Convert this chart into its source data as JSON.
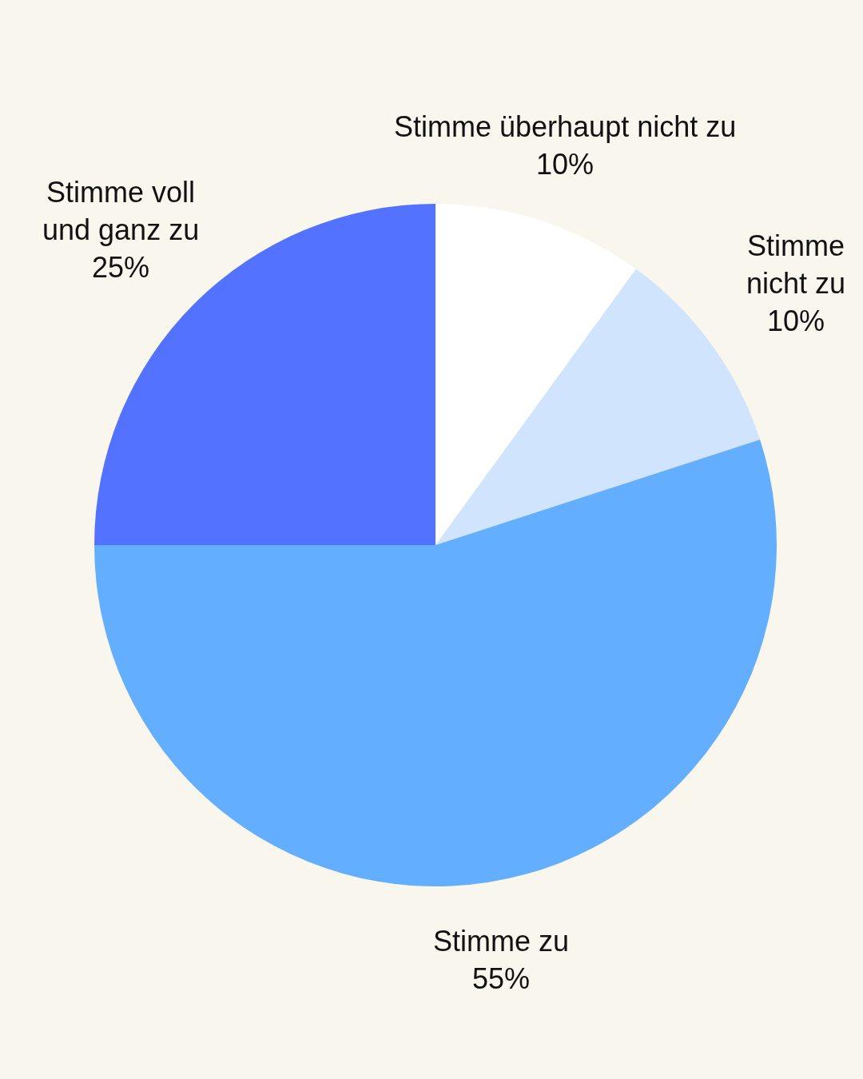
{
  "chart_data": {
    "type": "pie",
    "categories": [
      "Stimme überhaupt nicht zu",
      "Stimme\nnicht zu",
      "Stimme zu",
      "Stimme voll\nund ganz zu"
    ],
    "values": [
      10,
      10,
      55,
      25
    ],
    "colors": [
      "#ffffff",
      "#d0e4fd",
      "#64aeff",
      "#5272ff"
    ],
    "value_labels": [
      "10%",
      "10%",
      "55%",
      "25%"
    ]
  }
}
